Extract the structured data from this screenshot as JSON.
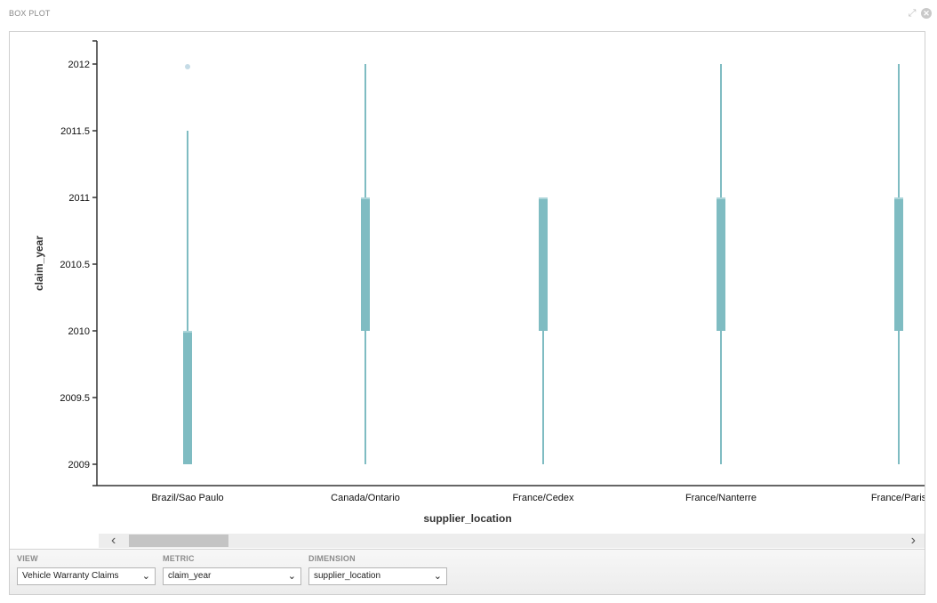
{
  "panel": {
    "title": "BOX PLOT"
  },
  "controls": {
    "view": {
      "label": "VIEW",
      "value": "Vehicle Warranty Claims"
    },
    "metric": {
      "label": "METRIC",
      "value": "claim_year"
    },
    "dimension": {
      "label": "DIMENSION",
      "value": "supplier_location"
    }
  },
  "chart_data": {
    "type": "boxplot",
    "xlabel": "supplier_location",
    "ylabel": "claim_year",
    "ylim": [
      2009,
      2012
    ],
    "yticks": [
      2009,
      2009.5,
      2010,
      2010.5,
      2011,
      2011.5,
      2012
    ],
    "ytick_labels": [
      "2009",
      "2009.5",
      "2010",
      "2010.5",
      "2011",
      "2011.5",
      "2012"
    ],
    "categories": [
      "Brazil/Sao Paulo",
      "Canada/Ontario",
      "France/Cedex",
      "France/Nanterre",
      "France/Paris"
    ],
    "boxes": [
      {
        "category": "Brazil/Sao Paulo",
        "min": 2009,
        "q1": 2009,
        "median": 2010,
        "q3": 2010,
        "max": 2011.5,
        "outliers": [
          2011.98
        ]
      },
      {
        "category": "Canada/Ontario",
        "min": 2009,
        "q1": 2010,
        "median": 2011,
        "q3": 2011,
        "max": 2012,
        "outliers": []
      },
      {
        "category": "France/Cedex",
        "min": 2009,
        "q1": 2010,
        "median": 2011,
        "q3": 2011,
        "max": 2011,
        "outliers": []
      },
      {
        "category": "France/Nanterre",
        "min": 2009,
        "q1": 2010,
        "median": 2011,
        "q3": 2011,
        "max": 2012,
        "outliers": []
      },
      {
        "category": "France/Paris",
        "min": 2009,
        "q1": 2010,
        "median": 2011,
        "q3": 2011,
        "max": 2012,
        "outliers": []
      }
    ],
    "grid": false,
    "legend": "none",
    "colors": {
      "box": "#7fbcc2",
      "whisker": "#7fbcc2",
      "outlier": "#c5dbe6",
      "median": "#d9eef0",
      "axis": "#333333"
    }
  }
}
